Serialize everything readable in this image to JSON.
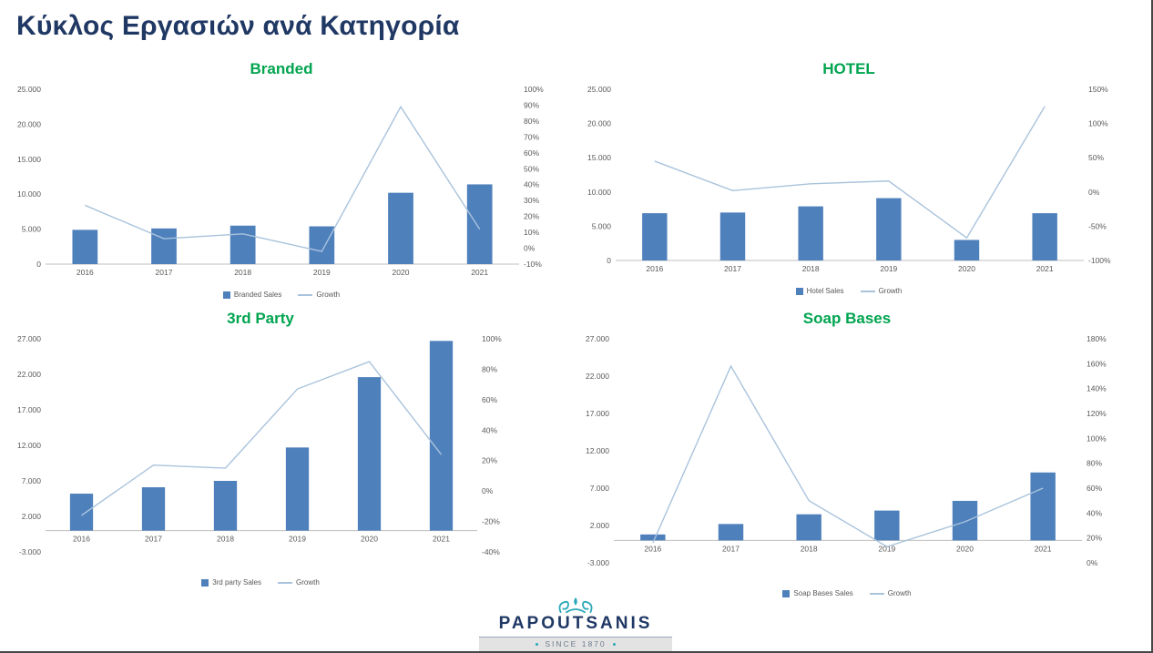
{
  "page": {
    "title": "Κύκλος Εργασιών ανά Κατηγορία"
  },
  "colors": {
    "bar": "#4e80bc",
    "line": "#a9c3dc",
    "chart_title_green": "#00a44f",
    "heading_navy": "#203864",
    "logo_teal": "#2aa8b8"
  },
  "logo": {
    "name": "PAPOUTSANIS",
    "tagline": "SINCE 1870",
    "icon": "papoutsanis-emblem-icon"
  },
  "chart_data": [
    {
      "type": "bar",
      "title": "Branded",
      "categories": [
        "2016",
        "2017",
        "2018",
        "2019",
        "2020",
        "2021"
      ],
      "series": [
        {
          "name": "Branded Sales",
          "kind": "bar",
          "axis": "left",
          "values": [
            4900,
            5100,
            5500,
            5400,
            10200,
            11400
          ]
        },
        {
          "name": "Growth",
          "kind": "line",
          "axis": "right",
          "values": [
            0.27,
            0.06,
            0.09,
            -0.02,
            0.89,
            0.12
          ]
        }
      ],
      "left_axis": {
        "min": 0,
        "max": 25000,
        "step": 5000,
        "format": "thousands"
      },
      "right_axis": {
        "min": -0.1,
        "max": 1.0,
        "step": 0.1,
        "format": "percent"
      },
      "grid": false,
      "legend_position": "bottom"
    },
    {
      "type": "bar",
      "title": "HOTEL",
      "categories": [
        "2016",
        "2017",
        "2018",
        "2019",
        "2020",
        "2021"
      ],
      "series": [
        {
          "name": "Hotel Sales",
          "kind": "bar",
          "axis": "left",
          "values": [
            6900,
            7000,
            7900,
            9100,
            3000,
            6900
          ]
        },
        {
          "name": "Growth",
          "kind": "line",
          "axis": "right",
          "values": [
            0.45,
            0.02,
            0.12,
            0.16,
            -0.67,
            1.25
          ]
        }
      ],
      "left_axis": {
        "min": 0,
        "max": 25000,
        "step": 5000,
        "format": "thousands"
      },
      "right_axis": {
        "min": -1.0,
        "max": 1.5,
        "step": 0.5,
        "format": "percent"
      },
      "grid": false,
      "legend_position": "bottom"
    },
    {
      "type": "bar",
      "title": "3rd Party",
      "categories": [
        "2016",
        "2017",
        "2018",
        "2019",
        "2020",
        "2021"
      ],
      "series": [
        {
          "name": "3rd party Sales",
          "kind": "bar",
          "axis": "left",
          "values": [
            5200,
            6100,
            7000,
            11700,
            21600,
            26700
          ]
        },
        {
          "name": "Growth",
          "kind": "line",
          "axis": "right",
          "values": [
            -0.16,
            0.17,
            0.15,
            0.67,
            0.85,
            0.24
          ]
        }
      ],
      "left_axis": {
        "min": -3000,
        "max": 27000,
        "step": 5000,
        "format": "thousands"
      },
      "right_axis": {
        "min": -0.4,
        "max": 1.0,
        "step": 0.2,
        "format": "percent"
      },
      "grid": false,
      "legend_position": "bottom"
    },
    {
      "type": "bar",
      "title": "Soap Bases",
      "categories": [
        "2016",
        "2017",
        "2018",
        "2019",
        "2020",
        "2021"
      ],
      "series": [
        {
          "name": "Soap Bases Sales",
          "kind": "bar",
          "axis": "left",
          "values": [
            800,
            2200,
            3500,
            4000,
            5300,
            9100
          ]
        },
        {
          "name": "Growth",
          "kind": "line",
          "axis": "right",
          "values": [
            0.16,
            1.58,
            0.5,
            0.13,
            0.33,
            0.6
          ]
        }
      ],
      "left_axis": {
        "min": -3000,
        "max": 27000,
        "step": 5000,
        "format": "thousands"
      },
      "right_axis": {
        "min": 0.0,
        "max": 1.8,
        "step": 0.2,
        "format": "percent"
      },
      "grid": false,
      "legend_position": "bottom"
    }
  ]
}
